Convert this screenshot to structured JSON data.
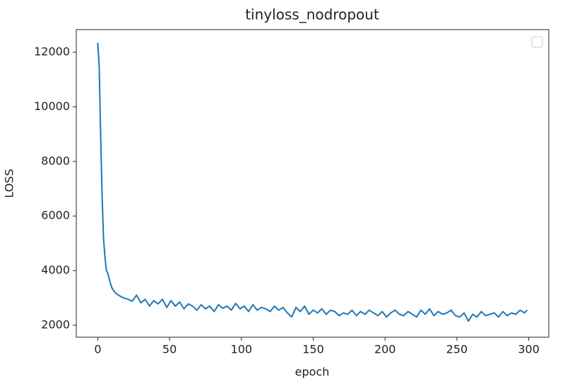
{
  "chart_data": {
    "type": "line",
    "title": "tinyloss_nodropout",
    "x_label": "epoch",
    "y_label": "LOSS",
    "x": [
      0,
      1,
      2,
      3,
      4,
      5,
      6,
      7,
      8,
      9,
      10,
      12,
      15,
      18,
      21,
      24,
      27,
      30,
      33,
      36,
      39,
      42,
      45,
      48,
      51,
      54,
      57,
      60,
      63,
      66,
      69,
      72,
      75,
      78,
      81,
      84,
      87,
      90,
      93,
      96,
      99,
      102,
      105,
      108,
      111,
      114,
      117,
      120,
      123,
      126,
      129,
      132,
      135,
      138,
      141,
      144,
      147,
      150,
      153,
      156,
      159,
      162,
      165,
      168,
      171,
      174,
      177,
      180,
      183,
      186,
      189,
      192,
      195,
      198,
      201,
      204,
      207,
      210,
      213,
      216,
      219,
      222,
      225,
      228,
      231,
      234,
      237,
      240,
      243,
      246,
      249,
      252,
      255,
      258,
      261,
      264,
      267,
      270,
      273,
      276,
      279,
      282,
      285,
      288,
      291,
      294,
      297,
      299
    ],
    "values": [
      12350,
      11500,
      9000,
      6800,
      5200,
      4500,
      4000,
      3900,
      3700,
      3500,
      3350,
      3200,
      3080,
      3000,
      2950,
      2880,
      3100,
      2820,
      2950,
      2700,
      2900,
      2780,
      2950,
      2650,
      2900,
      2700,
      2850,
      2600,
      2780,
      2700,
      2550,
      2750,
      2600,
      2700,
      2500,
      2750,
      2620,
      2700,
      2550,
      2800,
      2600,
      2700,
      2500,
      2750,
      2550,
      2650,
      2600,
      2500,
      2700,
      2550,
      2650,
      2450,
      2300,
      2650,
      2500,
      2700,
      2400,
      2550,
      2450,
      2600,
      2400,
      2550,
      2500,
      2350,
      2450,
      2400,
      2550,
      2350,
      2500,
      2400,
      2550,
      2450,
      2350,
      2500,
      2300,
      2450,
      2550,
      2400,
      2350,
      2500,
      2400,
      2300,
      2550,
      2400,
      2600,
      2350,
      2500,
      2400,
      2450,
      2550,
      2350,
      2300,
      2450,
      2150,
      2400,
      2300,
      2500,
      2350,
      2400,
      2450,
      2300,
      2500,
      2350,
      2450,
      2400,
      2550,
      2450,
      2550
    ],
    "color": "#1f77b4",
    "xlim": [
      -14.95,
      313.95
    ],
    "xticks": [
      0,
      50,
      100,
      150,
      200,
      250,
      300
    ],
    "ylim": [
      1560,
      12830
    ],
    "yticks": [
      2000,
      4000,
      6000,
      8000,
      10000,
      12000
    ],
    "legend": "upper right"
  }
}
